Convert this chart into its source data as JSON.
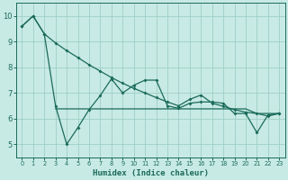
{
  "xlabel": "Humidex (Indice chaleur)",
  "background_color": "#c8eae4",
  "grid_color": "#9ecfc5",
  "line_color": "#1a6b5a",
  "xlim": [
    -0.5,
    23.5
  ],
  "ylim": [
    4.5,
    10.5
  ],
  "yticks": [
    5,
    6,
    7,
    8,
    9,
    10
  ],
  "xticks": [
    0,
    1,
    2,
    3,
    4,
    5,
    6,
    7,
    8,
    9,
    10,
    11,
    12,
    13,
    14,
    15,
    16,
    17,
    18,
    19,
    20,
    21,
    22,
    23
  ],
  "series1_x": [
    0,
    1,
    2,
    3,
    4,
    5,
    6,
    7,
    8,
    9,
    10,
    11,
    12,
    13,
    14,
    15,
    16,
    17,
    18,
    19,
    20,
    21,
    22,
    23
  ],
  "series1_y": [
    9.6,
    10.0,
    9.3,
    8.95,
    8.65,
    8.38,
    8.1,
    7.85,
    7.6,
    7.38,
    7.18,
    7.0,
    6.82,
    6.65,
    6.5,
    6.75,
    6.92,
    6.6,
    6.48,
    6.35,
    6.25,
    6.2,
    6.1,
    6.2
  ],
  "series1_markers_x": [
    0,
    1,
    2,
    8,
    9,
    10,
    11,
    12,
    13,
    14,
    15,
    16,
    17,
    18,
    19,
    20,
    21,
    22,
    23
  ],
  "series2_x": [
    0,
    1,
    2,
    3,
    4,
    5,
    6,
    7,
    8,
    9,
    10,
    11,
    12,
    13,
    14,
    15,
    16,
    17,
    18,
    19,
    20,
    21,
    22,
    23
  ],
  "series2_y": [
    9.6,
    10.0,
    9.3,
    6.5,
    5.0,
    5.65,
    6.35,
    6.9,
    7.55,
    7.0,
    7.3,
    7.5,
    7.5,
    6.5,
    6.4,
    6.6,
    6.65,
    6.65,
    6.6,
    6.2,
    6.2,
    5.45,
    6.15,
    6.2
  ],
  "series3_x": [
    3,
    4,
    5,
    6,
    7,
    8,
    9,
    10,
    11,
    12,
    13,
    14,
    15,
    16,
    17,
    18,
    19,
    20,
    21,
    22,
    23
  ],
  "series3_y": [
    6.38,
    6.38,
    6.38,
    6.38,
    6.38,
    6.38,
    6.38,
    6.38,
    6.38,
    6.38,
    6.38,
    6.38,
    6.38,
    6.38,
    6.38,
    6.38,
    6.38,
    6.38,
    6.2,
    6.2,
    6.2
  ]
}
